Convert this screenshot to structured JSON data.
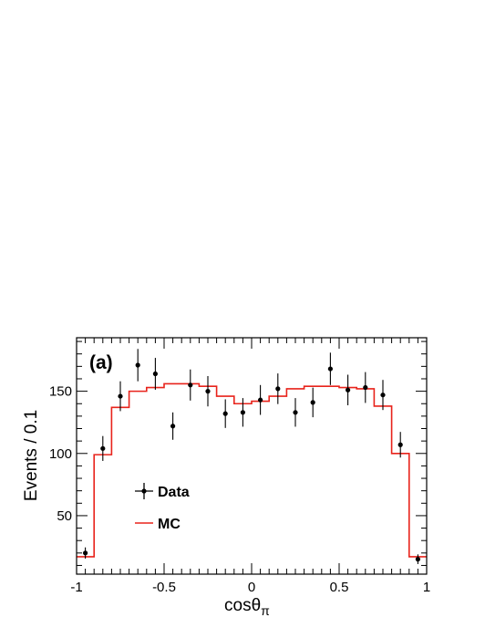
{
  "chart_data": {
    "type": "histogram-with-points",
    "panel_label": "(a)",
    "xlabel": "cosθ",
    "xlabel_subscript": "π",
    "ylabel": "Events / 0.1",
    "xlim": [
      -1,
      1
    ],
    "ylim": [
      3,
      193
    ],
    "x_ticks": [
      -1,
      -0.5,
      0,
      0.5,
      1
    ],
    "x_tick_labels": [
      "-1",
      "-0.5",
      "0",
      "0.5",
      "1"
    ],
    "y_ticks": [
      50,
      100,
      150
    ],
    "y_tick_labels": [
      "50",
      "100",
      "150"
    ],
    "legend": {
      "placement": "lower-left",
      "entries": [
        {
          "label": "Data",
          "style": "points-with-error-bars",
          "color": "#000000"
        },
        {
          "label": "MC",
          "style": "line",
          "color": "#e8231b"
        }
      ]
    },
    "bin_edges": [
      -1,
      -0.9,
      -0.8,
      -0.7,
      -0.6,
      -0.5,
      -0.4,
      -0.3,
      -0.2,
      -0.1,
      0,
      0.1,
      0.2,
      0.3,
      0.4,
      0.5,
      0.6,
      0.7,
      0.8,
      0.9,
      1
    ],
    "series": [
      {
        "name": "Data",
        "kind": "points",
        "color": "#000000",
        "x": [
          -0.95,
          -0.85,
          -0.75,
          -0.65,
          -0.55,
          -0.45,
          -0.35,
          -0.25,
          -0.15,
          -0.05,
          0.05,
          0.15,
          0.25,
          0.35,
          0.45,
          0.55,
          0.65,
          0.75,
          0.85,
          0.95
        ],
        "y": [
          20,
          104,
          146,
          171,
          164,
          122,
          155,
          150,
          132,
          133,
          143,
          152,
          133,
          141,
          168,
          151,
          153,
          147,
          107,
          15
        ],
        "yerr": [
          4.5,
          10,
          12,
          13,
          12.8,
          11,
          12.5,
          12.2,
          11.5,
          11.5,
          12,
          12.3,
          11.5,
          11.9,
          13,
          12.3,
          12.4,
          12.1,
          10.3,
          3.9
        ]
      },
      {
        "name": "MC",
        "kind": "step",
        "color": "#e8231b",
        "values": [
          17,
          99,
          137,
          150,
          153,
          156,
          156,
          154,
          146,
          140,
          142,
          146,
          152,
          154,
          154,
          153,
          152,
          138,
          100,
          17
        ]
      }
    ]
  }
}
